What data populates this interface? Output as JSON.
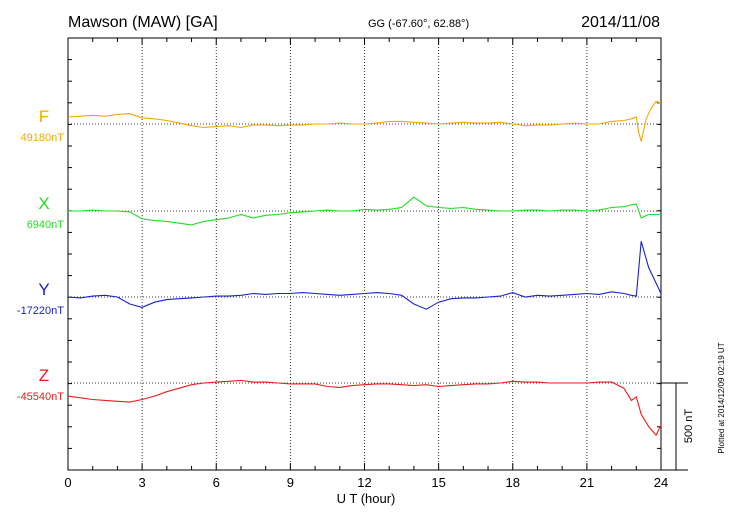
{
  "header": {
    "station": "Mawson (MAW)  [GA]",
    "coords": "GG (-67.60°,  62.88°)",
    "date": "2014/11/08"
  },
  "footer_note": "Plotted at 2014/12/09 02:19 UT",
  "scale_label": "500 nT",
  "chart_data": {
    "type": "line",
    "title": "Mawson (MAW)  [GA]",
    "xlabel": "U T (hour)",
    "xlim": [
      0,
      24
    ],
    "x_ticks": [
      "0",
      "3",
      "6",
      "9",
      "12",
      "15",
      "18",
      "21",
      "24"
    ],
    "grid": true,
    "scale_bar_nT": 500,
    "series": [
      {
        "name": "F",
        "baseline_label": "49180nT",
        "color": "#f5a800",
        "x": [
          0,
          0.5,
          1,
          1.5,
          2,
          2.5,
          3,
          3.5,
          4,
          4.5,
          5,
          5.5,
          6,
          6.5,
          7,
          7.5,
          8,
          8.5,
          9,
          9.5,
          10,
          10.5,
          11,
          11.5,
          12,
          12.5,
          13,
          13.5,
          14,
          14.5,
          15,
          15.5,
          16,
          16.5,
          17,
          17.5,
          18,
          18.5,
          19,
          19.5,
          20,
          20.5,
          21,
          21.5,
          22,
          22.5,
          22.8,
          23,
          23.1,
          23.2,
          23.4,
          23.6,
          23.8,
          24
        ],
        "y": [
          40,
          45,
          50,
          45,
          55,
          60,
          35,
          30,
          20,
          5,
          -10,
          -20,
          -15,
          -10,
          -20,
          -5,
          -5,
          -10,
          -5,
          -5,
          0,
          0,
          5,
          0,
          0,
          5,
          15,
          15,
          10,
          5,
          0,
          5,
          10,
          5,
          5,
          10,
          0,
          -10,
          -5,
          -5,
          0,
          5,
          0,
          0,
          15,
          20,
          30,
          40,
          -50,
          -100,
          30,
          90,
          130,
          120
        ]
      },
      {
        "name": "X",
        "baseline_label": "6940nT",
        "color": "#22dd22",
        "x": [
          0,
          0.5,
          1,
          1.5,
          2,
          2.5,
          3,
          3.5,
          4,
          4.5,
          5,
          5.5,
          6,
          6.5,
          7,
          7.5,
          8,
          8.5,
          9,
          9.5,
          10,
          10.5,
          11,
          11.5,
          12,
          12.5,
          13,
          13.5,
          14,
          14.5,
          15,
          15.5,
          16,
          16.5,
          17,
          17.5,
          18,
          18.5,
          19,
          19.5,
          20,
          20.5,
          21,
          21.5,
          22,
          22.5,
          22.8,
          23,
          23.2,
          23.5,
          24
        ],
        "y": [
          0,
          0,
          5,
          0,
          0,
          -5,
          -45,
          -55,
          -60,
          -70,
          -80,
          -60,
          -50,
          -40,
          -20,
          -40,
          -25,
          -20,
          -10,
          -5,
          0,
          5,
          0,
          0,
          10,
          5,
          10,
          20,
          80,
          30,
          20,
          15,
          20,
          10,
          5,
          0,
          0,
          5,
          5,
          0,
          5,
          5,
          0,
          5,
          20,
          25,
          35,
          40,
          -40,
          -20,
          -20
        ]
      },
      {
        "name": "Y",
        "baseline_label": "-17220nT",
        "color": "#1a22cc",
        "x": [
          0,
          0.5,
          1,
          1.5,
          2,
          2.5,
          3,
          3.5,
          4,
          4.5,
          5,
          5.5,
          6,
          6.5,
          7,
          7.5,
          8,
          8.5,
          9,
          9.5,
          10,
          10.5,
          11,
          11.5,
          12,
          12.5,
          13,
          13.5,
          14,
          14.5,
          15,
          15.5,
          16,
          16.5,
          17,
          17.5,
          18,
          18.5,
          19,
          19.5,
          20,
          20.5,
          21,
          21.5,
          22,
          22.5,
          22.8,
          23,
          23.2,
          23.5,
          24
        ],
        "y": [
          0,
          -5,
          5,
          10,
          0,
          -40,
          -60,
          -30,
          -15,
          -10,
          -5,
          0,
          5,
          5,
          10,
          20,
          15,
          20,
          20,
          25,
          20,
          15,
          10,
          15,
          20,
          25,
          20,
          10,
          -40,
          -70,
          -30,
          -10,
          -5,
          -5,
          0,
          5,
          25,
          0,
          10,
          5,
          10,
          15,
          20,
          15,
          30,
          20,
          10,
          5,
          320,
          170,
          20
        ]
      },
      {
        "name": "Z",
        "baseline_label": "-45540nT",
        "color": "#ee1c1c",
        "x": [
          0,
          0.5,
          1,
          1.5,
          2,
          2.5,
          3,
          3.5,
          4,
          4.5,
          5,
          5.5,
          6,
          6.5,
          7,
          7.5,
          8,
          8.5,
          9,
          9.5,
          10,
          10.5,
          11,
          11.5,
          12,
          12.5,
          13,
          13.5,
          14,
          14.5,
          15,
          15.5,
          16,
          16.5,
          17,
          17.5,
          18,
          18.5,
          19,
          19.5,
          20,
          20.5,
          21,
          21.5,
          22,
          22.5,
          22.8,
          23,
          23.2,
          23.5,
          23.8,
          24
        ],
        "y": [
          -75,
          -85,
          -95,
          -100,
          -105,
          -110,
          -95,
          -75,
          -50,
          -30,
          -10,
          0,
          5,
          10,
          15,
          5,
          5,
          0,
          -5,
          -5,
          -5,
          -20,
          -25,
          -15,
          -10,
          -5,
          -5,
          -10,
          -15,
          -10,
          -20,
          -15,
          -10,
          -5,
          -5,
          0,
          10,
          5,
          5,
          0,
          0,
          0,
          0,
          5,
          5,
          -30,
          -100,
          -80,
          -180,
          -250,
          -300,
          -240
        ]
      }
    ]
  }
}
